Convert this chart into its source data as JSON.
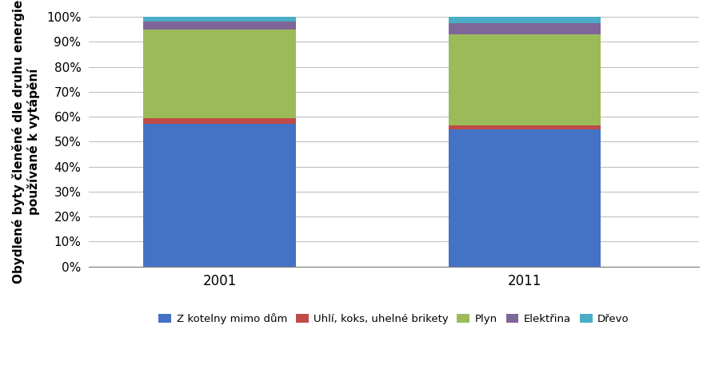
{
  "categories": [
    "2001",
    "2011"
  ],
  "series": {
    "Z kotelny mimo dům": [
      57.0,
      55.0
    ],
    "Uhlí, koks, uhelné brikety": [
      2.5,
      1.5
    ],
    "Plyn": [
      35.5,
      36.5
    ],
    "Elektřina": [
      3.0,
      4.5
    ],
    "Dřevo": [
      2.0,
      2.5
    ]
  },
  "colors": {
    "Z kotelny mimo dům": "#4472C4",
    "Uhlí, koks, uhelné brikety": "#BE4B48",
    "Plyn": "#9BBB59",
    "Elektřina": "#7E6699",
    "Dřevo": "#4BACC6"
  },
  "ylabel_line1": "Obydlené byty členěné dle druhu energie",
  "ylabel_line2": "používané k vytápění",
  "ylim": [
    0,
    100
  ],
  "yticks": [
    0,
    10,
    20,
    30,
    40,
    50,
    60,
    70,
    80,
    90,
    100
  ],
  "yticklabels": [
    "0%",
    "10%",
    "20%",
    "30%",
    "40%",
    "50%",
    "60%",
    "70%",
    "80%",
    "90%",
    "100%"
  ],
  "bar_width": 0.35,
  "figsize": [
    8.89,
    4.72
  ],
  "dpi": 100,
  "x_positions": [
    0.3,
    1.0
  ],
  "xlim": [
    0.0,
    1.4
  ]
}
